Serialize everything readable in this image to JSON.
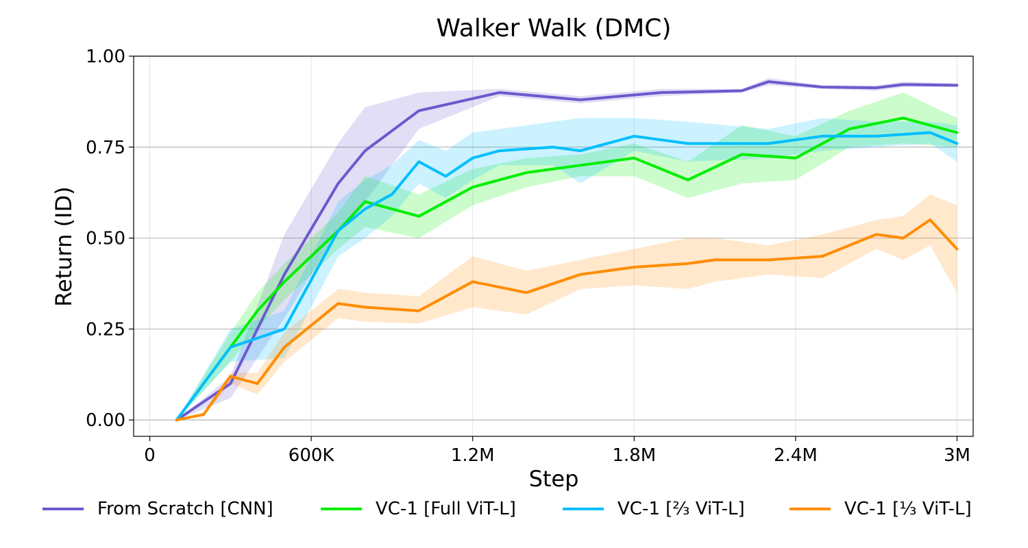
{
  "chart_data": {
    "type": "line",
    "title": "Walker Walk (DMC)",
    "xlabel": "Step",
    "ylabel": "Return (ID)",
    "xlim": [
      -60000,
      3060000
    ],
    "ylim": [
      -0.045,
      1.0
    ],
    "xticks": [
      0,
      600000,
      1200000,
      1800000,
      2400000,
      3000000
    ],
    "xtick_labels": [
      "0",
      "600K",
      "1.2M",
      "1.8M",
      "2.4M",
      "3M"
    ],
    "yticks": [
      0.0,
      0.25,
      0.5,
      0.75,
      1.0
    ],
    "ytick_labels": [
      "0.00",
      "0.25",
      "0.50",
      "0.75",
      "1.00"
    ],
    "grid": true,
    "legend_position": "bottom",
    "series": [
      {
        "name": "From Scratch [CNN]",
        "color": "#6a5acd",
        "x": [
          100000,
          300000,
          500000,
          700000,
          800000,
          1000000,
          1300000,
          1600000,
          1900000,
          2200000,
          2300000,
          2500000,
          2700000,
          2800000,
          3000000
        ],
        "y": [
          0.0,
          0.1,
          0.4,
          0.65,
          0.74,
          0.85,
          0.9,
          0.88,
          0.9,
          0.905,
          0.93,
          0.915,
          0.913,
          0.922,
          0.92
        ],
        "upper": [
          0.0,
          0.12,
          0.51,
          0.76,
          0.86,
          0.9,
          0.91,
          0.89,
          0.91,
          0.91,
          0.94,
          0.92,
          0.92,
          0.93,
          0.925
        ],
        "lower": [
          0.0,
          0.06,
          0.28,
          0.52,
          0.6,
          0.8,
          0.89,
          0.87,
          0.89,
          0.9,
          0.92,
          0.91,
          0.905,
          0.915,
          0.915
        ]
      },
      {
        "name": "VC-1 [Full ViT-L]",
        "color": "#00ee00",
        "x": [
          100000,
          300000,
          400000,
          500000,
          700000,
          800000,
          1000000,
          1200000,
          1400000,
          1600000,
          1800000,
          2000000,
          2200000,
          2400000,
          2600000,
          2800000,
          3000000
        ],
        "y": [
          0.0,
          0.2,
          0.3,
          0.38,
          0.52,
          0.6,
          0.56,
          0.64,
          0.68,
          0.7,
          0.72,
          0.66,
          0.73,
          0.72,
          0.8,
          0.83,
          0.79
        ],
        "upper": [
          0.0,
          0.24,
          0.35,
          0.43,
          0.57,
          0.67,
          0.62,
          0.69,
          0.72,
          0.73,
          0.76,
          0.71,
          0.81,
          0.78,
          0.85,
          0.9,
          0.83
        ],
        "lower": [
          0.0,
          0.16,
          0.25,
          0.33,
          0.47,
          0.53,
          0.5,
          0.59,
          0.64,
          0.67,
          0.67,
          0.61,
          0.65,
          0.66,
          0.75,
          0.76,
          0.75
        ]
      },
      {
        "name": "VC-1 [⅔ ViT-L]",
        "color": "#00bfff",
        "x": [
          100000,
          300000,
          500000,
          700000,
          800000,
          900000,
          1000000,
          1100000,
          1200000,
          1300000,
          1500000,
          1600000,
          1800000,
          2000000,
          2300000,
          2500000,
          2700000,
          2900000,
          3000000
        ],
        "y": [
          0.0,
          0.2,
          0.25,
          0.52,
          0.58,
          0.62,
          0.71,
          0.67,
          0.72,
          0.74,
          0.75,
          0.74,
          0.78,
          0.76,
          0.76,
          0.78,
          0.78,
          0.79,
          0.76
        ],
        "upper": [
          0.0,
          0.25,
          0.3,
          0.6,
          0.66,
          0.7,
          0.77,
          0.74,
          0.79,
          0.8,
          0.82,
          0.83,
          0.83,
          0.82,
          0.8,
          0.83,
          0.82,
          0.82,
          0.81
        ],
        "lower": [
          0.0,
          0.16,
          0.17,
          0.45,
          0.5,
          0.56,
          0.65,
          0.61,
          0.66,
          0.7,
          0.7,
          0.65,
          0.74,
          0.71,
          0.72,
          0.74,
          0.75,
          0.76,
          0.71
        ]
      },
      {
        "name": "VC-1 [⅓ ViT-L]",
        "color": "#ff8c00",
        "x": [
          100000,
          200000,
          300000,
          400000,
          500000,
          700000,
          800000,
          1000000,
          1200000,
          1400000,
          1600000,
          1800000,
          2000000,
          2100000,
          2300000,
          2500000,
          2700000,
          2800000,
          2900000,
          3000000
        ],
        "y": [
          0.0,
          0.015,
          0.12,
          0.1,
          0.2,
          0.32,
          0.31,
          0.3,
          0.38,
          0.35,
          0.4,
          0.42,
          0.43,
          0.44,
          0.44,
          0.45,
          0.51,
          0.5,
          0.55,
          0.47
        ],
        "upper": [
          0.0,
          0.02,
          0.13,
          0.13,
          0.24,
          0.36,
          0.35,
          0.34,
          0.45,
          0.41,
          0.44,
          0.47,
          0.5,
          0.5,
          0.48,
          0.51,
          0.55,
          0.56,
          0.62,
          0.59
        ],
        "lower": [
          0.0,
          0.01,
          0.1,
          0.07,
          0.16,
          0.28,
          0.27,
          0.265,
          0.31,
          0.29,
          0.36,
          0.37,
          0.36,
          0.38,
          0.4,
          0.39,
          0.47,
          0.44,
          0.48,
          0.35
        ]
      }
    ]
  }
}
